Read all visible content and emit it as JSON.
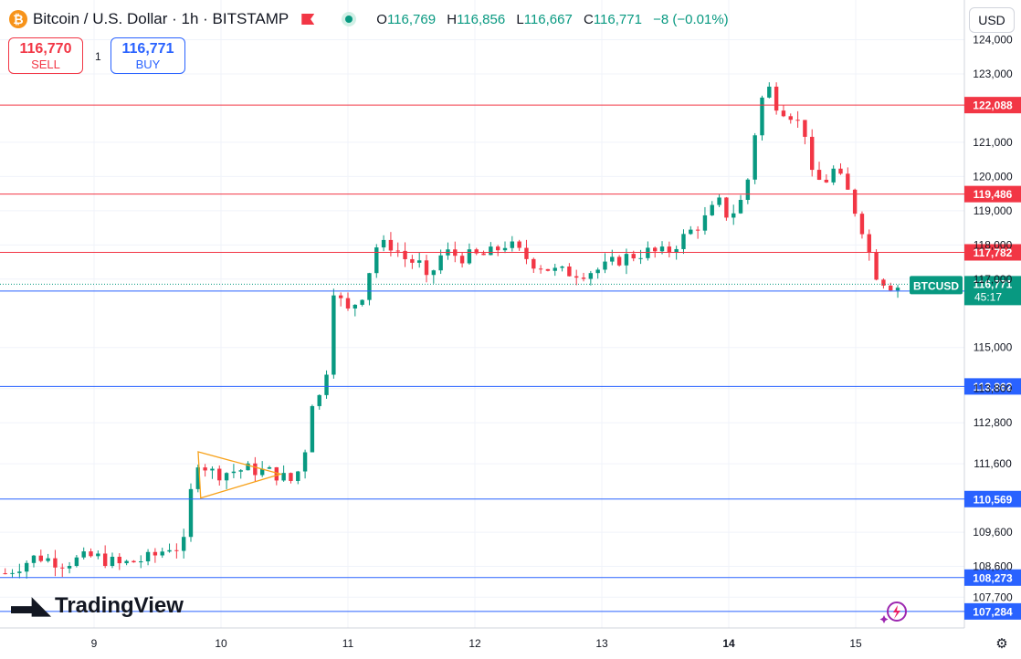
{
  "header": {
    "symbol_title": "Bitcoin / U.S. Dollar · 1h · BITSTAMP",
    "coin_icon": "bitcoin-icon",
    "o_label": "O",
    "o_value": "116,769",
    "h_label": "H",
    "h_value": "116,856",
    "l_label": "L",
    "l_value": "116,667",
    "c_label": "C",
    "c_value": "116,771",
    "change": "−8 (−0.01%)"
  },
  "trade": {
    "sell_price": "116,770",
    "sell_label": "SELL",
    "quantity": "1",
    "buy_price": "116,771",
    "buy_label": "BUY"
  },
  "currency_button": "USD",
  "logo_text": "TradingView",
  "colors": {
    "up": "#089981",
    "down": "#f23645",
    "resistance": "#f23645",
    "support": "#2962ff",
    "triangle": "#f7a21b"
  },
  "chart_data": {
    "type": "candlestick",
    "x_ticks": [
      "9",
      "10",
      "11",
      "12",
      "13",
      "14",
      "15"
    ],
    "y_ticks": [
      "124,000",
      "123,000",
      "121,000",
      "120,000",
      "119,000",
      "118,000",
      "117,000",
      "115,000",
      "113,800",
      "112,800",
      "111,600",
      "109,600",
      "108,600",
      "107,700"
    ],
    "y_range": [
      106800,
      124200
    ],
    "horizontal_levels": [
      {
        "value": 122088,
        "label": "122,088",
        "kind": "resistance"
      },
      {
        "value": 119486,
        "label": "119,486",
        "kind": "resistance"
      },
      {
        "value": 117782,
        "label": "117,782",
        "kind": "resistance"
      },
      {
        "value": 116652,
        "label": "116,652",
        "kind": "support"
      },
      {
        "value": 113862,
        "label": "113,862",
        "kind": "support"
      },
      {
        "value": 110569,
        "label": "110,569",
        "kind": "support"
      },
      {
        "value": 108273,
        "label": "108,273",
        "kind": "support"
      },
      {
        "value": 107284,
        "label": "107,284",
        "kind": "support"
      }
    ],
    "last_price": {
      "symbol": "BTCUSD",
      "value": 116771,
      "label": "116,771",
      "countdown": "45:17"
    },
    "annotation": "triangle",
    "candles_path": [
      [
        8.3,
        108400
      ],
      [
        8.55,
        108900
      ],
      [
        8.75,
        108700
      ],
      [
        9.0,
        108900
      ],
      [
        9.2,
        108650
      ],
      [
        9.45,
        108850
      ],
      [
        9.6,
        109200
      ],
      [
        9.7,
        109100
      ],
      [
        9.8,
        111750
      ],
      [
        9.95,
        111300
      ],
      [
        10.2,
        111450
      ],
      [
        10.4,
        111350
      ],
      [
        10.55,
        111100
      ],
      [
        10.65,
        111600
      ],
      [
        10.7,
        113400
      ],
      [
        10.82,
        113650
      ],
      [
        10.87,
        116850
      ],
      [
        10.95,
        116300
      ],
      [
        11.0,
        116050
      ],
      [
        11.12,
        116600
      ],
      [
        11.22,
        117950
      ],
      [
        11.35,
        118000
      ],
      [
        11.45,
        117600
      ],
      [
        11.58,
        117400
      ],
      [
        11.62,
        116900
      ],
      [
        11.75,
        117800
      ],
      [
        11.9,
        117650
      ],
      [
        12.1,
        117700
      ],
      [
        12.25,
        118050
      ],
      [
        12.45,
        117500
      ],
      [
        12.65,
        117200
      ],
      [
        12.85,
        117200
      ],
      [
        13.0,
        117300
      ],
      [
        13.15,
        117600
      ],
      [
        13.35,
        117800
      ],
      [
        13.5,
        117750
      ],
      [
        13.7,
        118400
      ],
      [
        13.8,
        118700
      ],
      [
        13.92,
        119250
      ],
      [
        14.0,
        118800
      ],
      [
        14.1,
        119300
      ],
      [
        14.18,
        120300
      ],
      [
        14.22,
        121800
      ],
      [
        14.3,
        122700
      ],
      [
        14.38,
        122100
      ],
      [
        14.5,
        121800
      ],
      [
        14.62,
        121200
      ],
      [
        14.65,
        120000
      ],
      [
        14.75,
        119800
      ],
      [
        14.82,
        120200
      ],
      [
        14.92,
        119700
      ],
      [
        15.05,
        118500
      ],
      [
        15.15,
        117200
      ],
      [
        15.25,
        116850
      ],
      [
        15.35,
        116771
      ]
    ]
  }
}
